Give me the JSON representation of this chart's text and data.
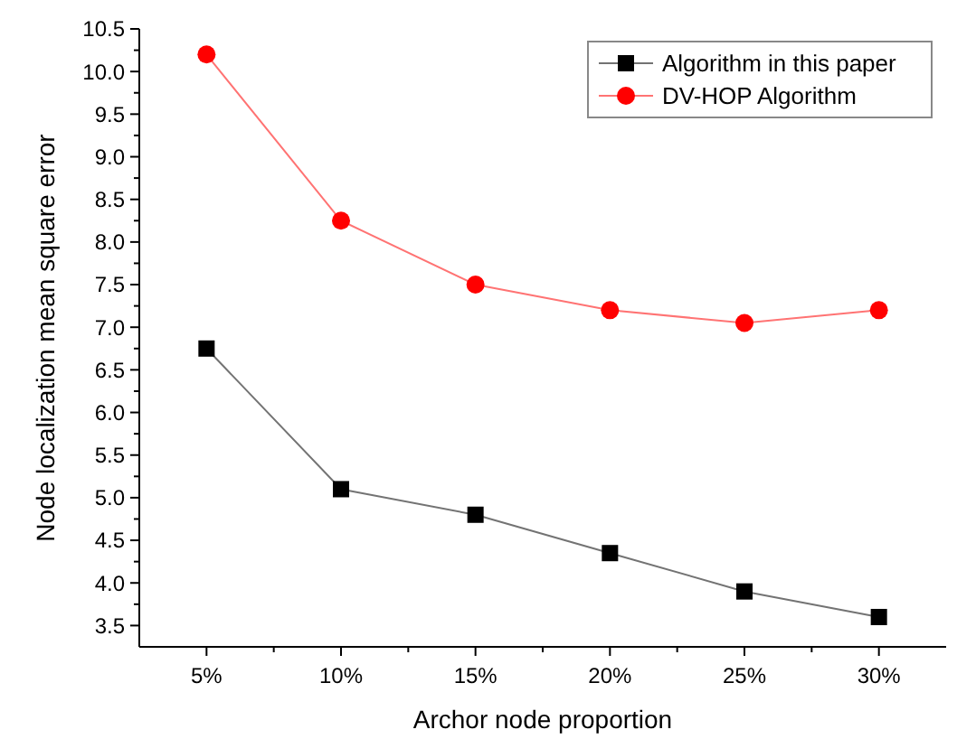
{
  "chart_data": {
    "type": "line",
    "xlabel": "Archor node proportion",
    "ylabel": "Node localization mean square error",
    "categories": [
      "5%",
      "10%",
      "15%",
      "20%",
      "25%",
      "30%"
    ],
    "series": [
      {
        "name": "Algorithm in this paper",
        "color": "#000000",
        "marker": "square",
        "values": [
          6.75,
          5.1,
          4.8,
          4.35,
          3.9,
          3.6
        ]
      },
      {
        "name": "DV-HOP Algorithm",
        "color": "#ff0000",
        "marker": "circle",
        "values": [
          10.2,
          8.25,
          7.5,
          7.2,
          7.05,
          7.2
        ]
      }
    ],
    "ylim": [
      3.25,
      10.5
    ],
    "yticks": [
      {
        "value": 3.5,
        "label": "3.5"
      },
      {
        "value": 4,
        "label": "4.0"
      },
      {
        "value": 4.5,
        "label": "4.5"
      },
      {
        "value": 5,
        "label": "5.0"
      },
      {
        "value": 5.5,
        "label": "5.5"
      },
      {
        "value": 6,
        "label": "6.0"
      },
      {
        "value": 6.5,
        "label": "6.5"
      },
      {
        "value": 7,
        "label": "7.0"
      },
      {
        "value": 7.5,
        "label": "7.5"
      },
      {
        "value": 8,
        "label": "8.0"
      },
      {
        "value": 8.5,
        "label": "8.5"
      },
      {
        "value": 9,
        "label": "9.0"
      },
      {
        "value": 9.5,
        "label": "9.5"
      },
      {
        "value": 10,
        "label": "10.0"
      },
      {
        "value": 10.5,
        "label": "10.5"
      }
    ],
    "legend": "top right",
    "grid": false,
    "line_style": "solid"
  }
}
